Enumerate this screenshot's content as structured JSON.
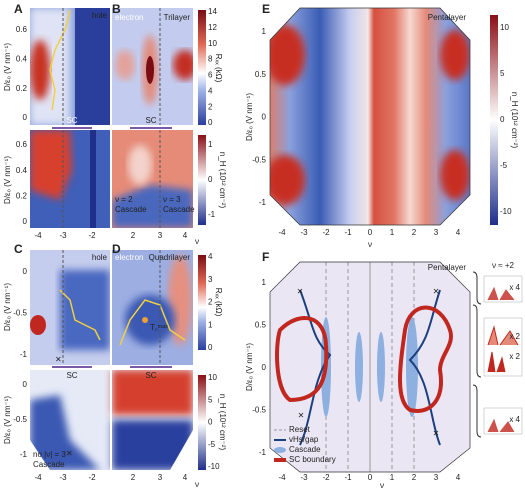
{
  "A": {
    "label": "A",
    "note": "hole",
    "sc": "SC",
    "ylabel_top": "D/ε₀ (V nm⁻¹)",
    "ylabel_bottom": "D/ε₀ (V nm⁻¹)",
    "yticks_top": [
      "0.6",
      "0.4",
      "0.2",
      "0"
    ],
    "yticks_bottom": [
      "0.6",
      "0.4",
      "0.2",
      "0"
    ]
  },
  "B": {
    "label": "B",
    "note": "electron",
    "title": "Trilayer",
    "sc": "SC",
    "cbar_top": [
      "14",
      "12",
      "10",
      "8",
      "6",
      "4",
      "2",
      "0"
    ],
    "cbar_top_label": "Rₓₓ (kΩ)",
    "cbar_bottom": [
      "1",
      "0",
      "-1"
    ],
    "cbar_bottom_label": "n_H (10¹² cm⁻²)",
    "ann1": "ν = 2",
    "ann1b": "Cascade",
    "ann2": "ν = 3",
    "ann2b": "Cascade",
    "xticks": [
      "-4",
      "-3",
      "-2",
      "2",
      "3",
      "4"
    ],
    "xlabel": "ν"
  },
  "C": {
    "label": "C",
    "note": "hole",
    "sc": "SC",
    "ylabel_top": "D/ε₀ (V nm⁻¹)",
    "ylabel_bottom": "D/ε₀ (V nm⁻¹)",
    "yticks_top": [
      "0",
      "-0.5",
      "-1"
    ],
    "yticks_bottom": [
      "0",
      "-0.5",
      "-1"
    ],
    "ann": "no |ν| = 3",
    "annb": "Cascade"
  },
  "D": {
    "label": "D",
    "note": "electron",
    "title": "Quadrilayer",
    "tc": "T꜀ᵐᵃˣ",
    "sc": "SC",
    "cbar_top": [
      "4",
      "3",
      "2",
      "1",
      "0"
    ],
    "cbar_top_label": "Rₓₓ (kΩ)",
    "cbar_bottom": [
      "10",
      "5",
      "0",
      "-5",
      "-10"
    ],
    "cbar_bottom_label": "n_H (10¹² cm⁻²)",
    "xticks": [
      "-4",
      "-3",
      "-2",
      "2",
      "3",
      "4"
    ],
    "xlabel": "ν"
  },
  "E": {
    "label": "E",
    "title": "Pentalayer",
    "ylabel": "D/ε₀ (V nm⁻¹)",
    "yticks": [
      "1",
      "0.5",
      "0",
      "-0.5",
      "-1"
    ],
    "xticks": [
      "-4",
      "-3",
      "-2",
      "-1",
      "0",
      "1",
      "2",
      "3",
      "4"
    ],
    "xlabel": "ν",
    "cbar": [
      "10",
      "5",
      "0",
      "-5",
      "-10"
    ],
    "cbar_label": "n_H (10¹² cm⁻²)"
  },
  "F": {
    "label": "F",
    "title": "Pentalayer",
    "ylabel": "D/ε₀ (V nm⁻¹)",
    "yticks": [
      "1",
      "0.5",
      "0",
      "-0.5",
      "-1"
    ],
    "xticks": [
      "-4",
      "-3",
      "-2",
      "-1",
      "0",
      "1",
      "2",
      "3",
      "4"
    ],
    "xlabel": "ν",
    "legend": [
      "Reset",
      "vHs/gap",
      "Cascade",
      "SC boundary"
    ],
    "inset_title": "ν ≈ +2",
    "inset_factors": [
      "x 4",
      "x 2",
      "x 2",
      "x 4"
    ]
  }
}
